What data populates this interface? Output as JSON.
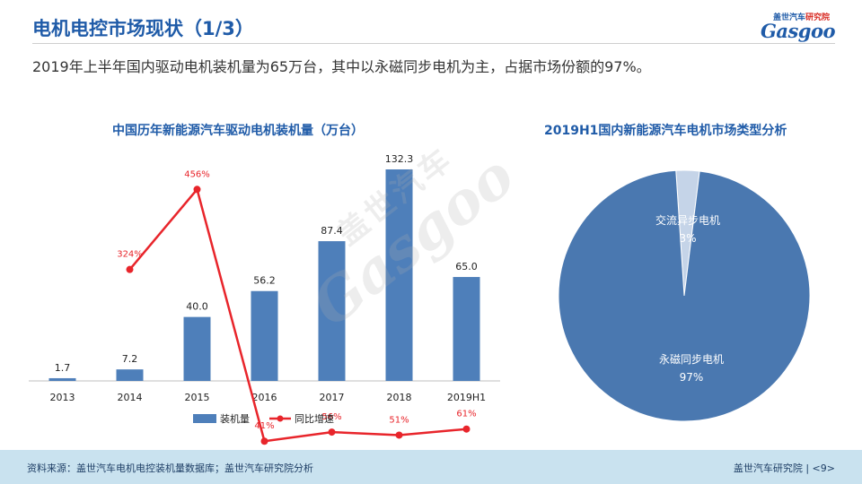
{
  "page": {
    "title": "电机电控市场现状（1/3）",
    "subtitle": "2019年上半年国内驱动电机装机量为65万台，其中以永磁同步电机为主，占据市场份额的97%。",
    "logo": {
      "cn_main": "盖世汽车",
      "cn_red": "研究院",
      "en": "Gasgoo"
    },
    "watermark": {
      "cn": "盖世汽车",
      "en": "Gasgoo"
    },
    "footer": {
      "source": "资料来源：盖世汽车电机电控装机量数据库；盖世汽车研究院分析",
      "right": "盖世汽车研究院 | <9>"
    }
  },
  "colors": {
    "title_blue": "#1f5ba8",
    "bar": "#4e7fba",
    "line": "#e8252b",
    "pie": "#4a78b0",
    "pie_small": "#c5d4e8",
    "footer_bg": "#c9e2ef"
  },
  "chart_data": [
    {
      "type": "bar",
      "title": "中国历年新能源汽车驱动电机装机量（万台）",
      "categories": [
        "2013",
        "2014",
        "2015",
        "2016",
        "2017",
        "2018",
        "2019H1"
      ],
      "series": [
        {
          "name": "装机量",
          "type": "bar",
          "values": [
            1.7,
            7.2,
            40.0,
            56.2,
            87.4,
            132.3,
            65.0
          ],
          "labels": [
            "1.7",
            "7.2",
            "40.0",
            "56.2",
            "87.4",
            "132.3",
            "65.0"
          ]
        },
        {
          "name": "同比增速",
          "type": "line",
          "values": [
            null,
            324,
            456,
            41,
            56,
            51,
            61
          ],
          "labels": [
            "",
            "324%",
            "456%",
            "41%",
            "56%",
            "51%",
            "61%"
          ]
        }
      ],
      "legend": "bottom",
      "grid": false
    },
    {
      "type": "pie",
      "title": "2019H1国内新能源汽车电机市场类型分析",
      "slices": [
        {
          "label": "交流异步电机",
          "value": 3,
          "pct_label": "3%"
        },
        {
          "label": "永磁同步电机",
          "value": 97,
          "pct_label": "97%"
        }
      ]
    }
  ]
}
